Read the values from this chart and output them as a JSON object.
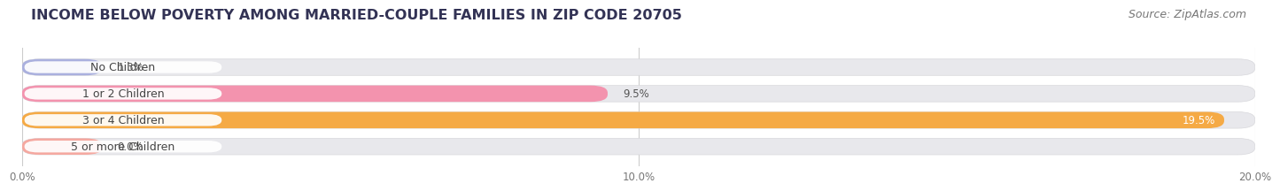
{
  "title": "INCOME BELOW POVERTY AMONG MARRIED-COUPLE FAMILIES IN ZIP CODE 20705",
  "source": "Source: ZipAtlas.com",
  "categories": [
    "No Children",
    "1 or 2 Children",
    "3 or 4 Children",
    "5 or more Children"
  ],
  "values": [
    1.3,
    9.5,
    19.5,
    0.0
  ],
  "display_values": [
    "1.3%",
    "9.5%",
    "19.5%",
    "0.0%"
  ],
  "bar_colors": [
    "#aab0de",
    "#f393ae",
    "#f5aa45",
    "#f5a8a0"
  ],
  "bar_bg_color": "#e8e8ec",
  "bar_bg_color2": "#f2f2f5",
  "xlim": [
    0,
    20.0
  ],
  "xticks": [
    0.0,
    10.0,
    20.0
  ],
  "xtick_labels": [
    "0.0%",
    "10.0%",
    "20.0%"
  ],
  "title_fontsize": 11.5,
  "source_fontsize": 9,
  "label_fontsize": 9,
  "value_fontsize": 8.5,
  "bar_height": 0.62,
  "background_color": "#ffffff",
  "pill_color": "#ffffff",
  "value_inside_color": "#ffffff",
  "value_outside_color": "#555555",
  "inside_threshold": 15.0,
  "zero_bar_width": 1.3
}
